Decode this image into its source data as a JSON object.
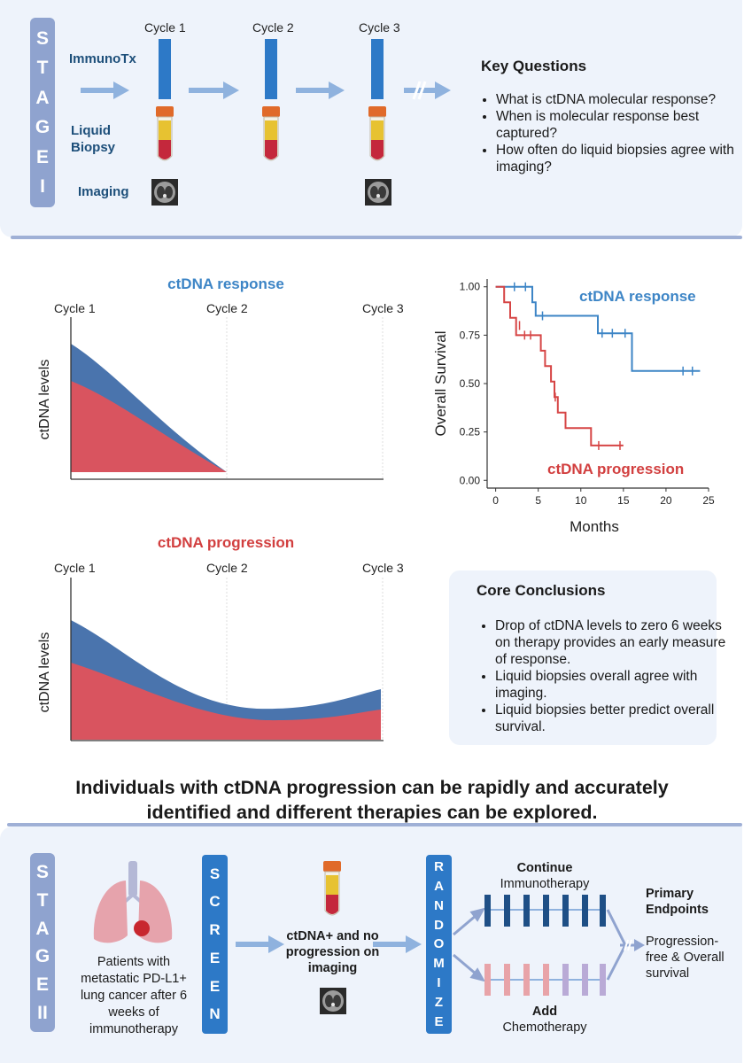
{
  "stage1": {
    "stage_letters": [
      "S",
      "T",
      "A",
      "G",
      "E",
      "I"
    ],
    "rows": [
      "ImmunoTx",
      "Liquid Biopsy",
      "Imaging"
    ],
    "cycles": [
      "Cycle 1",
      "Cycle 2",
      "Cycle 3"
    ],
    "key_questions": {
      "title": "Key Questions",
      "items": [
        "What is ctDNA molecular response?",
        "When is molecular response best captured?",
        "How often do liquid biopsies agree with imaging?"
      ]
    }
  },
  "response_plot": {
    "title": "ctDNA response",
    "cycles": [
      "Cycle 1",
      "Cycle 2",
      "Cycle 3"
    ],
    "ylabel": "ctDNA levels"
  },
  "progression_plot": {
    "title": "ctDNA progression",
    "cycles": [
      "Cycle 1",
      "Cycle 2",
      "Cycle 3"
    ],
    "ylabel": "ctDNA levels"
  },
  "chart_data": {
    "type": "line",
    "title": "",
    "xlabel": "Months",
    "ylabel": "Overall Survival",
    "xlim": [
      -1,
      25
    ],
    "ylim": [
      0,
      1
    ],
    "x_ticks": [
      0,
      5,
      10,
      15,
      20,
      25
    ],
    "y_ticks": [
      "0.00",
      "0.25",
      "0.50",
      "0.75",
      "1.00"
    ],
    "series": [
      {
        "name": "ctDNA response",
        "color": "#3d85c6",
        "steps": [
          [
            0,
            1.0
          ],
          [
            4.3,
            1.0
          ],
          [
            4.3,
            0.92
          ],
          [
            4.7,
            0.92
          ],
          [
            4.7,
            0.85
          ],
          [
            12.0,
            0.85
          ],
          [
            12.0,
            0.76
          ],
          [
            16.0,
            0.76
          ],
          [
            16.0,
            0.565
          ],
          [
            24,
            0.565
          ]
        ],
        "censors": [
          [
            2.2,
            1.0
          ],
          [
            3.5,
            1.0
          ],
          [
            5.5,
            0.85
          ],
          [
            12.5,
            0.76
          ],
          [
            13.7,
            0.76
          ],
          [
            15.2,
            0.76
          ],
          [
            22.0,
            0.565
          ],
          [
            23.1,
            0.565
          ]
        ]
      },
      {
        "name": "ctDNA progression",
        "color": "#d64545",
        "steps": [
          [
            0,
            1.0
          ],
          [
            1.0,
            1.0
          ],
          [
            1.0,
            0.92
          ],
          [
            1.7,
            0.92
          ],
          [
            1.7,
            0.84
          ],
          [
            2.4,
            0.84
          ],
          [
            2.4,
            0.75
          ],
          [
            5.3,
            0.75
          ],
          [
            5.3,
            0.67
          ],
          [
            5.8,
            0.67
          ],
          [
            5.8,
            0.59
          ],
          [
            6.5,
            0.59
          ],
          [
            6.5,
            0.51
          ],
          [
            6.9,
            0.51
          ],
          [
            6.9,
            0.43
          ],
          [
            7.3,
            0.43
          ],
          [
            7.3,
            0.35
          ],
          [
            8.2,
            0.35
          ],
          [
            8.2,
            0.27
          ],
          [
            11.2,
            0.27
          ],
          [
            11.2,
            0.18
          ],
          [
            15,
            0.18
          ]
        ],
        "censors": [
          [
            2.8,
            0.8
          ],
          [
            3.4,
            0.75
          ],
          [
            4.1,
            0.75
          ],
          [
            7.0,
            0.43
          ],
          [
            12.1,
            0.18
          ],
          [
            14.6,
            0.18
          ]
        ]
      }
    ]
  },
  "conclusions": {
    "title": "Core Conclusions",
    "items": [
      "Drop of ctDNA levels to zero 6 weeks on therapy provides an early measure of response.",
      "Liquid biopsies overall agree with imaging.",
      "Liquid biopsies better predict overall survival."
    ]
  },
  "headline": {
    "line1": "Individuals with ctDNA progression can be rapidly and accurately",
    "line2": "identified and different therapies can be explored."
  },
  "stage2": {
    "stage_letters": [
      "S",
      "T",
      "A",
      "G",
      "E",
      "II"
    ],
    "patients": "Patients with metastatic PD-L1+ lung cancer after 6 weeks of immunotherapy",
    "screen_letters": [
      "S",
      "C",
      "R",
      "E",
      "E",
      "N"
    ],
    "criteria": "ctDNA+ and no progression on imaging",
    "randomize_letters": [
      "R",
      "A",
      "N",
      "D",
      "O",
      "M",
      "I",
      "Z",
      "E"
    ],
    "arm1_bold": "Continue",
    "arm1_rest": "Immunotherapy",
    "arm2_bold": "Add",
    "arm2_rest": "Chemotherapy",
    "endpoints_title": "Primary Endpoints",
    "endpoints_text": "Progression-free & Overall survival"
  },
  "colors": {
    "blue": "#3d6fa8",
    "red": "#d9545f",
    "stage_bar": "#8fa3cf",
    "screen_bar": "#2d79c7",
    "panel_bg": "#eef3fb"
  }
}
